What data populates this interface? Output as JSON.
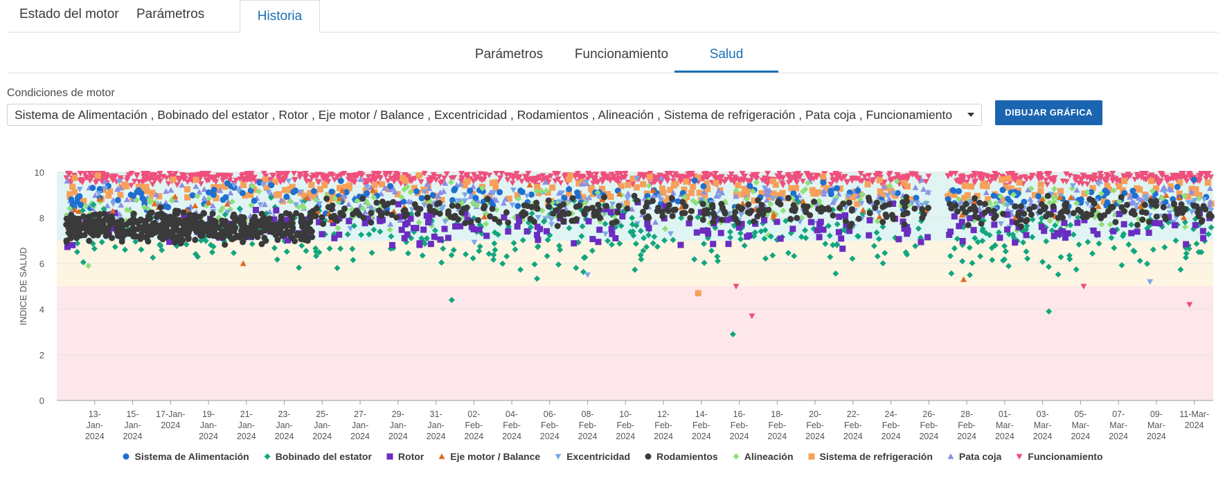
{
  "tabs": [
    "Estado del motor",
    "Parámetros",
    "Historia"
  ],
  "subtabs": [
    "Parámetros",
    "Funcionamiento",
    "Salud"
  ],
  "conditions": {
    "label": "Condiciones de motor",
    "value": "Sistema de Alimentación , Bobinado del estator , Rotor , Eje motor / Balance , Excentricidad , Rodamientos , Alineación , Sistema de refrigeración , Pata coja , Funcionamiento"
  },
  "draw_button": "DIBUJAR GRÁFICA",
  "chart_data": {
    "type": "scatter",
    "ylabel": "INDICE DE SALUD",
    "ylim": [
      0,
      10
    ],
    "yticks": [
      0,
      2,
      4,
      6,
      8,
      10
    ],
    "x_range": [
      "2024-01-11",
      "2024-03-12"
    ],
    "xticks": [
      {
        "date": "2024-01-13",
        "label": [
          "13-",
          "Jan-",
          "2024"
        ]
      },
      {
        "date": "2024-01-15",
        "label": [
          "15-",
          "Jan-",
          "2024"
        ]
      },
      {
        "date": "2024-01-17",
        "label": [
          "17-Jan-",
          "2024"
        ]
      },
      {
        "date": "2024-01-19",
        "label": [
          "19-",
          "Jan-",
          "2024"
        ]
      },
      {
        "date": "2024-01-21",
        "label": [
          "21-",
          "Jan-",
          "2024"
        ]
      },
      {
        "date": "2024-01-23",
        "label": [
          "23-",
          "Jan-",
          "2024"
        ]
      },
      {
        "date": "2024-01-25",
        "label": [
          "25-",
          "Jan-",
          "2024"
        ]
      },
      {
        "date": "2024-01-27",
        "label": [
          "27-",
          "Jan-",
          "2024"
        ]
      },
      {
        "date": "2024-01-29",
        "label": [
          "29-",
          "Jan-",
          "2024"
        ]
      },
      {
        "date": "2024-01-31",
        "label": [
          "31-",
          "Jan-",
          "2024"
        ]
      },
      {
        "date": "2024-02-02",
        "label": [
          "02-",
          "Feb-",
          "2024"
        ]
      },
      {
        "date": "2024-02-04",
        "label": [
          "04-",
          "Feb-",
          "2024"
        ]
      },
      {
        "date": "2024-02-06",
        "label": [
          "06-",
          "Feb-",
          "2024"
        ]
      },
      {
        "date": "2024-02-08",
        "label": [
          "08-",
          "Feb-",
          "2024"
        ]
      },
      {
        "date": "2024-02-10",
        "label": [
          "10-",
          "Feb-",
          "2024"
        ]
      },
      {
        "date": "2024-02-12",
        "label": [
          "12-",
          "Feb-",
          "2024"
        ]
      },
      {
        "date": "2024-02-14",
        "label": [
          "14-",
          "Feb-",
          "2024"
        ]
      },
      {
        "date": "2024-02-16",
        "label": [
          "16-",
          "Feb-",
          "2024"
        ]
      },
      {
        "date": "2024-02-18",
        "label": [
          "18-",
          "Feb-",
          "2024"
        ]
      },
      {
        "date": "2024-02-20",
        "label": [
          "20-",
          "Feb-",
          "2024"
        ]
      },
      {
        "date": "2024-02-22",
        "label": [
          "22-",
          "Feb-",
          "2024"
        ]
      },
      {
        "date": "2024-02-24",
        "label": [
          "24-",
          "Feb-",
          "2024"
        ]
      },
      {
        "date": "2024-02-26",
        "label": [
          "26-",
          "Feb-",
          "2024"
        ]
      },
      {
        "date": "2024-02-28",
        "label": [
          "28-",
          "Feb-",
          "2024"
        ]
      },
      {
        "date": "2024-03-01",
        "label": [
          "01-",
          "Mar-",
          "2024"
        ]
      },
      {
        "date": "2024-03-03",
        "label": [
          "03-",
          "Mar-",
          "2024"
        ]
      },
      {
        "date": "2024-03-05",
        "label": [
          "05-",
          "Mar-",
          "2024"
        ]
      },
      {
        "date": "2024-03-07",
        "label": [
          "07-",
          "Mar-",
          "2024"
        ]
      },
      {
        "date": "2024-03-09",
        "label": [
          "09-",
          "Mar-",
          "2024"
        ]
      },
      {
        "date": "2024-03-11",
        "label": [
          "11-Mar-",
          "2024"
        ]
      }
    ],
    "bands": [
      {
        "from": 0,
        "to": 5,
        "color": "#fde7ea"
      },
      {
        "from": 5,
        "to": 7,
        "color": "#fdf4e2"
      },
      {
        "from": 7,
        "to": 10,
        "color": "#e0f5f3"
      }
    ],
    "data_gap": [
      "2024-02-26T00:00",
      "2024-02-27T00:00"
    ],
    "legend_position": "bottom",
    "series": [
      {
        "name": "Sistema de Alimentación",
        "color": "#1f6fd0",
        "marker": "circle"
      },
      {
        "name": "Bobinado del estator",
        "color": "#12a67e",
        "marker": "diamond"
      },
      {
        "name": "Rotor",
        "color": "#6a2dbf",
        "marker": "square"
      },
      {
        "name": "Eje motor / Balance",
        "color": "#e06a1e",
        "marker": "triangle-up"
      },
      {
        "name": "Excentricidad",
        "color": "#7da6e8",
        "marker": "triangle-down"
      },
      {
        "name": "Rodamientos",
        "color": "#3a3a3a",
        "marker": "circle"
      },
      {
        "name": "Alineación",
        "color": "#8fe07a",
        "marker": "diamond"
      },
      {
        "name": "Sistema de refrigeración",
        "color": "#f6a05a",
        "marker": "square"
      },
      {
        "name": "Pata coja",
        "color": "#8a8fe6",
        "marker": "triangle-up"
      },
      {
        "name": "Funcionamiento",
        "color": "#ef4f7c",
        "marker": "triangle-down"
      }
    ],
    "notable_points": [
      {
        "series": "Bobinado del estator",
        "x": "2024-02-15T16:00",
        "y": 2.9
      },
      {
        "series": "Funcionamiento",
        "x": "2024-02-16T16:00",
        "y": 3.7
      },
      {
        "series": "Bobinado del estator",
        "x": "2024-03-03T08:00",
        "y": 3.9
      },
      {
        "series": "Funcionamiento",
        "x": "2024-03-10T18:00",
        "y": 4.2
      },
      {
        "series": "Bobinado del estator",
        "x": "2024-01-31T20:00",
        "y": 4.4
      },
      {
        "series": "Sistema de refrigeración",
        "x": "2024-02-13T20:00",
        "y": 4.7
      },
      {
        "series": "Funcionamiento",
        "x": "2024-02-15T20:00",
        "y": 5.0
      },
      {
        "series": "Funcionamiento",
        "x": "2024-03-05T04:00",
        "y": 5.0
      },
      {
        "series": "Eje motor / Balance",
        "x": "2024-02-27T20:00",
        "y": 5.3
      },
      {
        "series": "Eje motor / Balance",
        "x": "2024-01-20T20:00",
        "y": 6.0
      },
      {
        "series": "Excentricidad",
        "x": "2024-02-08T00:00",
        "y": 5.5
      },
      {
        "series": "Excentricidad",
        "x": "2024-03-08T16:00",
        "y": 5.2
      },
      {
        "series": "Alineación",
        "x": "2024-01-12T16:00",
        "y": 5.9
      }
    ]
  }
}
